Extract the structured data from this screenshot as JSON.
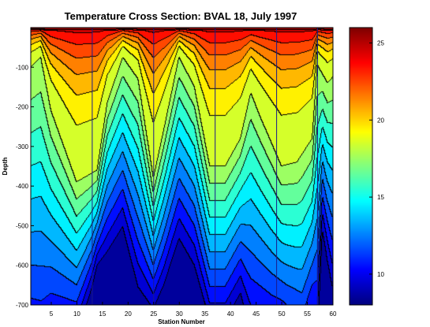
{
  "chart_data": {
    "type": "heatmap",
    "title": "Temperature Cross Section: BVAL 18, July 1997",
    "xlabel": "Station Number",
    "ylabel": "Depth",
    "xlim": [
      1,
      60
    ],
    "ylim": [
      -700,
      0
    ],
    "x_ticks": [
      5,
      10,
      15,
      20,
      25,
      30,
      35,
      40,
      45,
      50,
      55,
      60
    ],
    "y_ticks": [
      -100,
      -200,
      -300,
      -400,
      -500,
      -600,
      -700
    ],
    "x_tick_labels": [
      "5",
      "10",
      "15",
      "20",
      "25",
      "30",
      "35",
      "40",
      "45",
      "50",
      "55",
      "60"
    ],
    "y_tick_labels": [
      "-100",
      "-200",
      "-300",
      "-400",
      "-500",
      "-600",
      "-700"
    ],
    "colorbar": {
      "range": [
        8,
        26
      ],
      "ticks": [
        10,
        15,
        20,
        25
      ],
      "tick_labels": [
        "10",
        "15",
        "20",
        "25"
      ],
      "colormap": "jet"
    },
    "contour_levels": [
      9,
      10,
      11,
      12,
      13,
      14,
      15,
      16,
      17,
      18,
      19,
      20,
      21,
      22,
      23,
      24,
      25
    ],
    "transect_breaks": [
      13,
      25,
      37,
      49,
      57
    ],
    "approx_18C_isotherm_depth": [
      [
        1,
        -100
      ],
      [
        3,
        -75
      ],
      [
        5,
        -210
      ],
      [
        10,
        -390
      ],
      [
        14,
        -360
      ],
      [
        16,
        -190
      ],
      [
        19,
        -75
      ],
      [
        22,
        -130
      ],
      [
        25,
        -380
      ],
      [
        27,
        -260
      ],
      [
        30,
        -75
      ],
      [
        33,
        -150
      ],
      [
        36,
        -350
      ],
      [
        39,
        -350
      ],
      [
        42,
        -280
      ],
      [
        44,
        -165
      ],
      [
        46,
        -230
      ],
      [
        50,
        -350
      ],
      [
        53,
        -340
      ],
      [
        56,
        -280
      ],
      [
        57,
        -95
      ],
      [
        59,
        -140
      ],
      [
        60,
        -125
      ]
    ],
    "approx_12C_isotherm_depth": [
      [
        1,
        -600
      ],
      [
        5,
        -605
      ],
      [
        10,
        -650
      ],
      [
        13,
        -560
      ],
      [
        16,
        -440
      ],
      [
        19,
        -360
      ],
      [
        22,
        -480
      ],
      [
        25,
        -600
      ],
      [
        27,
        -520
      ],
      [
        30,
        -380
      ],
      [
        33,
        -450
      ],
      [
        36,
        -610
      ],
      [
        39,
        -610
      ],
      [
        42,
        -540
      ],
      [
        45,
        -580
      ],
      [
        48,
        -620
      ],
      [
        51,
        -650
      ],
      [
        54,
        -670
      ],
      [
        57,
        -560
      ],
      [
        58,
        -380
      ],
      [
        59,
        -440
      ],
      [
        60,
        -480
      ]
    ]
  }
}
